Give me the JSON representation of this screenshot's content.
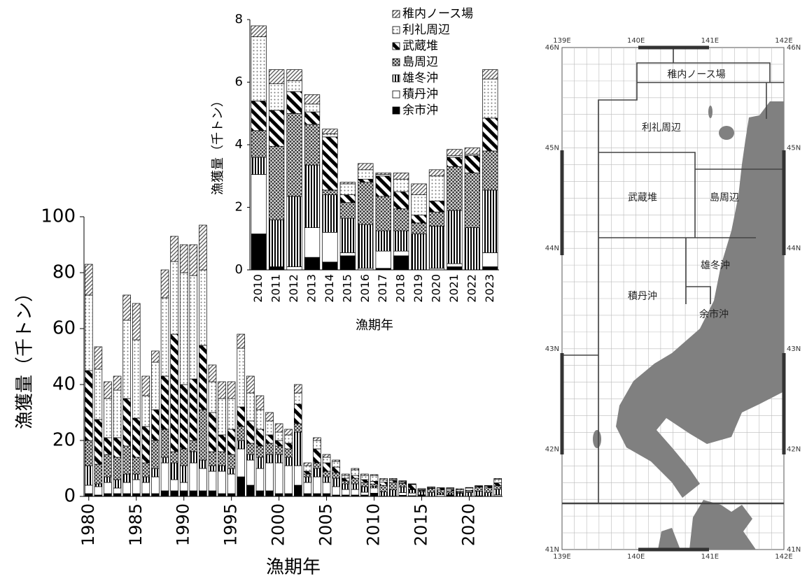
{
  "chart_data": [
    {
      "type": "bar",
      "stacked": true,
      "x_label": "漁期年",
      "y_label": "漁獲量（千トン）",
      "x": [
        1980,
        1981,
        1982,
        1983,
        1984,
        1985,
        1986,
        1987,
        1988,
        1989,
        1990,
        1991,
        1992,
        1993,
        1994,
        1995,
        1996,
        1997,
        1998,
        1999,
        2000,
        2001,
        2002,
        2003,
        2004,
        2005,
        2006,
        2007,
        2008,
        2009,
        2010,
        2011,
        2012,
        2013,
        2014,
        2015,
        2016,
        2017,
        2018,
        2019,
        2020,
        2021,
        2022,
        2023
      ],
      "xlim": [
        1979.5,
        2023.5
      ],
      "xticks": [
        1980,
        1985,
        1990,
        1995,
        2000,
        2005,
        2010,
        2015,
        2020
      ],
      "ylim": [
        0,
        100
      ],
      "yticks": [
        0,
        20,
        40,
        60,
        80,
        100
      ],
      "series": [
        {
          "color": "#000000",
          "pattern": "solid",
          "values": [
            1,
            0.5,
            1,
            1,
            1,
            1,
            1,
            1,
            2,
            2,
            2,
            2,
            2,
            2,
            1,
            1,
            7,
            4,
            2,
            2,
            1,
            1,
            4,
            1,
            1,
            1,
            0.5,
            0.5,
            0.5,
            0.5,
            1.15,
            0.1,
            0,
            0.4,
            0.25,
            0.45,
            0,
            0.05,
            0.45,
            0,
            0,
            0.1,
            0,
            0.1
          ]
        },
        {
          "color": "#ffffff",
          "pattern": "solid",
          "values": [
            3,
            3,
            4,
            2,
            4,
            5,
            4,
            6,
            10,
            4,
            3,
            10,
            8,
            7,
            8,
            7,
            10,
            9,
            8,
            10,
            11,
            10,
            7,
            4,
            6,
            4,
            3,
            2,
            2,
            1,
            1.9,
            0,
            0.1,
            0.95,
            0.95,
            0.1,
            0.05,
            0.55,
            0.15,
            0,
            0.05,
            0.1,
            0,
            0.45
          ]
        },
        {
          "color": "#000000",
          "pattern": "vertical",
          "values": [
            7,
            1,
            2,
            3,
            3,
            2,
            2,
            3,
            2,
            6,
            6,
            4,
            3,
            2,
            2,
            2,
            3,
            2,
            4,
            3,
            3,
            3,
            12,
            2,
            3,
            2,
            3,
            2,
            2,
            2,
            0.55,
            1.5,
            2.25,
            2.0,
            1.2,
            1.1,
            1.4,
            0.65,
            0.65,
            1.15,
            1.35,
            1.7,
            1.35,
            2.0
          ]
        },
        {
          "color": "#333333",
          "pattern": "crosshatch",
          "values": [
            9,
            7,
            8,
            8,
            10,
            6,
            5,
            10,
            10,
            4,
            6,
            4,
            18,
            5,
            5,
            5,
            5,
            4,
            4,
            4,
            3,
            3,
            3,
            1,
            2,
            2,
            2,
            1,
            2,
            1.5,
            0.85,
            2.35,
            2.65,
            1.3,
            0.15,
            0.5,
            1.35,
            1.1,
            0.7,
            0.35,
            0.45,
            1.4,
            1.75,
            1.25
          ]
        },
        {
          "color": "#000000",
          "pattern": "diagonal-wide",
          "values": [
            25,
            16,
            6,
            7,
            17,
            14,
            13,
            11,
            19,
            42,
            23,
            22,
            23,
            14,
            6,
            9,
            7,
            8,
            6,
            3,
            2,
            2,
            7,
            1,
            5,
            3,
            2,
            1,
            1,
            1,
            0.95,
            1.15,
            0.7,
            0.4,
            1.7,
            0.25,
            0.1,
            0.65,
            0.55,
            0.25,
            0.35,
            0.3,
            0.55,
            1.05
          ]
        },
        {
          "color": "#777777",
          "pattern": "dots",
          "values": [
            27,
            18,
            14,
            17,
            28,
            28,
            11,
            17,
            28,
            26,
            40,
            37,
            27,
            11,
            13,
            11,
            21,
            10,
            7,
            5,
            3,
            3,
            4,
            2,
            3,
            2,
            2,
            1,
            2,
            1.5,
            2.05,
            0.85,
            0.35,
            0.25,
            0.1,
            0.35,
            0.3,
            0.05,
            0.4,
            0.65,
            0.8,
            0.05,
            0.05,
            1.25
          ]
        },
        {
          "color": "#555555",
          "pattern": "diagonal-fine",
          "values": [
            11,
            8,
            6,
            5,
            9,
            13,
            7,
            4,
            10,
            9,
            10,
            11,
            16,
            6,
            6,
            6,
            5,
            6,
            5,
            3,
            3,
            2,
            3,
            1,
            1,
            1,
            0.5,
            0.5,
            0.5,
            0.5,
            0.35,
            0.45,
            0.35,
            0.3,
            0.15,
            0.05,
            0.2,
            0.05,
            0.2,
            0.35,
            0.2,
            0.2,
            0.2,
            0.3
          ]
        }
      ]
    },
    {
      "type": "bar",
      "stacked": true,
      "x_label": "漁期年",
      "y_label": "漁獲量（千トン）",
      "legend": "upper right",
      "categories": [
        "2010",
        "2011",
        "2012",
        "2013",
        "2014",
        "2015",
        "2016",
        "2017",
        "2018",
        "2019",
        "2020",
        "2021",
        "2022",
        "2023"
      ],
      "ylim": [
        0,
        8
      ],
      "yticks": [
        0,
        2,
        4,
        6,
        8
      ],
      "series": [
        {
          "name": "余市沖",
          "color": "#000000",
          "pattern": "solid",
          "values": [
            1.15,
            0.1,
            0,
            0.4,
            0.25,
            0.45,
            0,
            0.05,
            0.45,
            0,
            0,
            0.1,
            0,
            0.1
          ]
        },
        {
          "name": "積丹沖",
          "color": "#ffffff",
          "pattern": "solid",
          "values": [
            1.9,
            0,
            0.1,
            0.95,
            0.95,
            0.1,
            0.05,
            0.55,
            0.15,
            0,
            0.05,
            0.1,
            0,
            0.45
          ]
        },
        {
          "name": "雄冬沖",
          "color": "#000000",
          "pattern": "vertical",
          "values": [
            0.55,
            1.5,
            2.25,
            2.0,
            1.2,
            1.1,
            1.4,
            0.65,
            0.65,
            1.15,
            1.35,
            1.7,
            1.35,
            2.0
          ]
        },
        {
          "name": "島周辺",
          "color": "#333333",
          "pattern": "crosshatch",
          "values": [
            0.85,
            2.35,
            2.65,
            1.3,
            0.15,
            0.5,
            1.35,
            1.1,
            0.7,
            0.35,
            0.45,
            1.4,
            1.75,
            1.25
          ]
        },
        {
          "name": "武蔵堆",
          "color": "#000000",
          "pattern": "diagonal-wide",
          "values": [
            0.95,
            1.15,
            0.7,
            0.4,
            1.7,
            0.25,
            0.1,
            0.65,
            0.55,
            0.25,
            0.35,
            0.3,
            0.55,
            1.05
          ]
        },
        {
          "name": "利礼周辺",
          "color": "#777777",
          "pattern": "dots",
          "values": [
            2.05,
            0.85,
            0.35,
            0.25,
            0.1,
            0.35,
            0.3,
            0.05,
            0.4,
            0.65,
            0.8,
            0.05,
            0.05,
            1.25
          ]
        },
        {
          "name": "稚内ノース場",
          "color": "#555555",
          "pattern": "diagonal-fine",
          "values": [
            0.35,
            0.45,
            0.35,
            0.3,
            0.15,
            0.05,
            0.2,
            0.05,
            0.2,
            0.35,
            0.2,
            0.2,
            0.2,
            0.3
          ]
        }
      ]
    }
  ],
  "map": {
    "lon_labels": [
      "139E",
      "140E",
      "141E",
      "142E"
    ],
    "lat_labels": [
      "46N",
      "45N",
      "44N",
      "43N",
      "42N",
      "41N"
    ],
    "areas": [
      "稚内ノース場",
      "利礼周辺",
      "武蔵堆",
      "島周辺",
      "雄冬沖",
      "積丹沖",
      "余市沖"
    ]
  }
}
